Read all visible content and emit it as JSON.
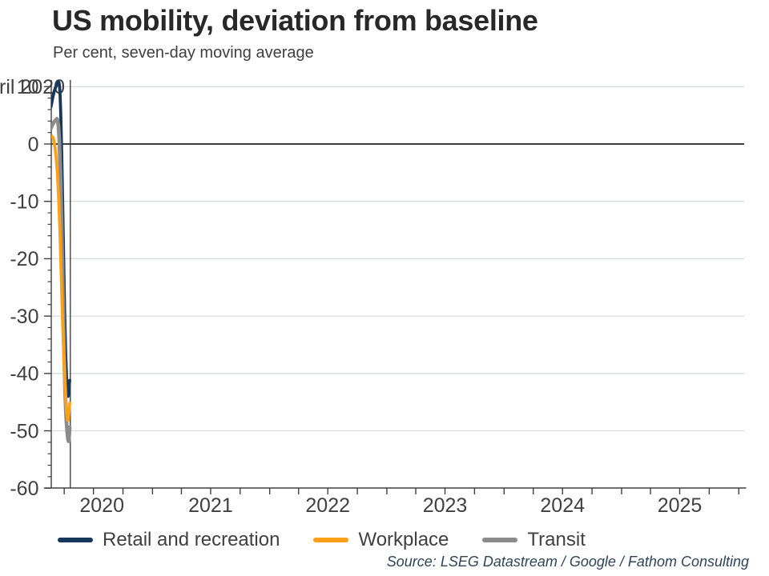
{
  "header": {
    "title": "US mobility, deviation from baseline",
    "subtitle": "Per cent, seven-day moving average"
  },
  "source_note": "Source: LSEG Datastream / Google / Fathom Consulting",
  "colors": {
    "retail": "#17375D",
    "workplace": "#FFA016",
    "transit": "#8C8C8C",
    "grid": "#D8DCDE",
    "axis": "#404040",
    "zero_line": "#3C3C3C",
    "marker_line": "#333333",
    "title_text": "#282828",
    "label_text": "#404040",
    "source_text": "#2F4457"
  },
  "chart_data": {
    "type": "line",
    "title": "US mobility, deviation from baseline",
    "ylabel": "Per cent, seven-day moving average",
    "ylim": [
      -60,
      10
    ],
    "y_ticks": [
      10,
      0,
      -10,
      -20,
      -30,
      -40,
      -50,
      -60
    ],
    "y_gridlines": [
      10,
      -10,
      -20,
      -30,
      -40,
      -50
    ],
    "y_minor_tick_step": 2,
    "x_tick_years": [
      "2020",
      "2021",
      "2022",
      "2023",
      "2024",
      "2025"
    ],
    "x_minor_ticks": "quarterly",
    "x_range_visible": [
      "2020-02-20",
      "2025-12-31"
    ],
    "grid": "horizontal",
    "legend_position": "bottom",
    "event_marker": {
      "date": "2020-04-20",
      "label_visible": "ril 2020"
    },
    "draw_order": [
      "Retail and recreation",
      "Transit",
      "Workplace"
    ],
    "series": [
      {
        "name": "Retail and recreation",
        "color": "#17375D",
        "stroke_width": 3.8,
        "points": [
          [
            "2020-02-20",
            6.5
          ],
          [
            "2020-02-25",
            8.0
          ],
          [
            "2020-03-01",
            9.2
          ],
          [
            "2020-03-06",
            10.0
          ],
          [
            "2020-03-11",
            10.6
          ],
          [
            "2020-03-15",
            10.8
          ],
          [
            "2020-03-18",
            9.5
          ],
          [
            "2020-03-21",
            5.5
          ],
          [
            "2020-03-24",
            -1.5
          ],
          [
            "2020-03-27",
            -10.0
          ],
          [
            "2020-03-30",
            -19.5
          ],
          [
            "2020-04-02",
            -28.5
          ],
          [
            "2020-04-05",
            -35.5
          ],
          [
            "2020-04-08",
            -40.5
          ],
          [
            "2020-04-11",
            -43.2
          ],
          [
            "2020-04-13",
            -44.0
          ],
          [
            "2020-04-15",
            -43.2
          ],
          [
            "2020-04-16",
            -42.4
          ],
          [
            "2020-04-18",
            -41.2
          ]
        ]
      },
      {
        "name": "Workplace",
        "color": "#FFA016",
        "stroke_width": 3.8,
        "points": [
          [
            "2020-02-20",
            1.2
          ],
          [
            "2020-02-24",
            1.3
          ],
          [
            "2020-02-28",
            0.8
          ],
          [
            "2020-03-03",
            -0.5
          ],
          [
            "2020-03-07",
            -2.5
          ],
          [
            "2020-03-11",
            -5.5
          ],
          [
            "2020-03-15",
            -10.0
          ],
          [
            "2020-03-19",
            -16.0
          ],
          [
            "2020-03-23",
            -23.5
          ],
          [
            "2020-03-27",
            -31.0
          ],
          [
            "2020-03-31",
            -37.5
          ],
          [
            "2020-04-04",
            -42.5
          ],
          [
            "2020-04-08",
            -46.3
          ],
          [
            "2020-04-11",
            -47.8
          ],
          [
            "2020-04-13",
            -48.2
          ],
          [
            "2020-04-15",
            -47.3
          ],
          [
            "2020-04-18",
            -45.2
          ]
        ]
      },
      {
        "name": "Transit",
        "color": "#8C8C8C",
        "stroke_width": 4.7,
        "points": [
          [
            "2020-02-20",
            2.8
          ],
          [
            "2020-02-25",
            3.4
          ],
          [
            "2020-03-01",
            3.9
          ],
          [
            "2020-03-06",
            4.2
          ],
          [
            "2020-03-10",
            4.3
          ],
          [
            "2020-03-14",
            3.0
          ],
          [
            "2020-03-17",
            0.0
          ],
          [
            "2020-03-20",
            -5.0
          ],
          [
            "2020-03-23",
            -12.0
          ],
          [
            "2020-03-26",
            -20.5
          ],
          [
            "2020-03-29",
            -29.5
          ],
          [
            "2020-04-01",
            -37.5
          ],
          [
            "2020-04-04",
            -43.5
          ],
          [
            "2020-04-07",
            -47.5
          ],
          [
            "2020-04-10",
            -50.0
          ],
          [
            "2020-04-13",
            -51.5
          ],
          [
            "2020-04-15",
            -51.8
          ],
          [
            "2020-04-16",
            -51.2
          ],
          [
            "2020-04-18",
            -49.4
          ]
        ]
      }
    ]
  }
}
